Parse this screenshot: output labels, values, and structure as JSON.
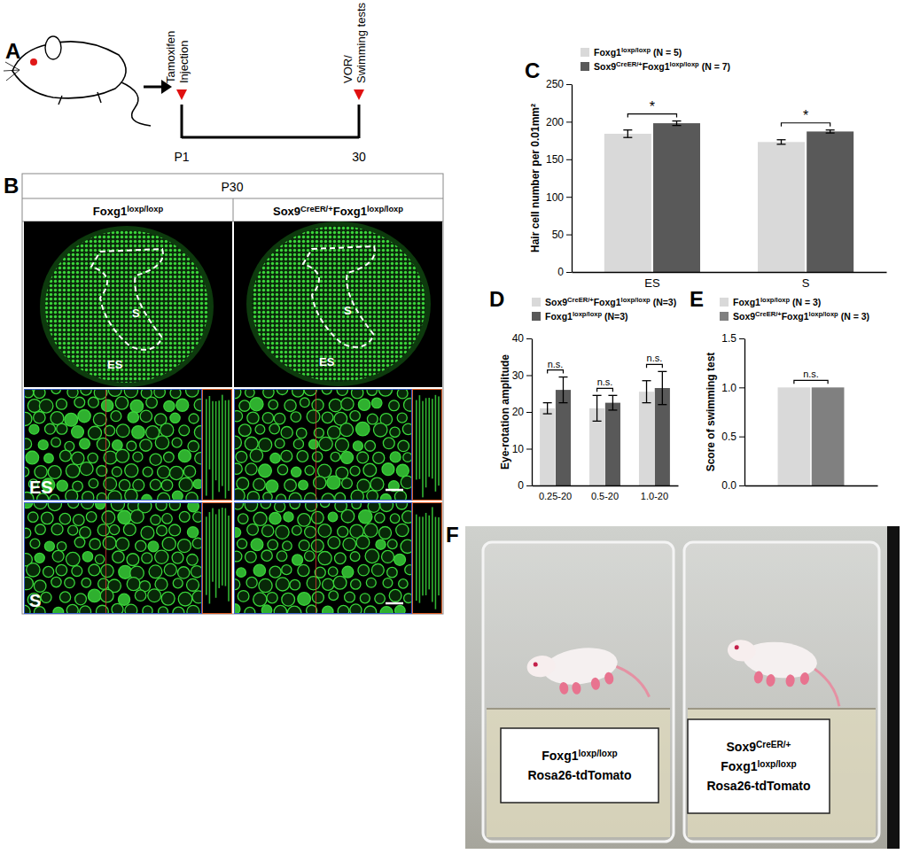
{
  "figure": {
    "A": {
      "label": "A",
      "events": [
        "Tamoxifen Injection",
        "VOR/ Swimming tests"
      ],
      "timepoints": [
        "P1",
        "30"
      ]
    },
    "B": {
      "label": "B",
      "header": "P30",
      "columns": [
        "Foxg1loxp/loxp",
        "Sox9CreER/+Foxg1loxp/loxp"
      ],
      "regions": [
        "S",
        "ES"
      ],
      "rows": [
        "ES",
        "S"
      ]
    },
    "F": {
      "label": "F",
      "boxes": [
        [
          "Foxg1loxp/loxp",
          "Rosa26-tdTomato"
        ],
        [
          "Sox9CreER/+",
          "Foxg1loxp/loxp",
          "Rosa26-tdTomato"
        ]
      ]
    }
  },
  "chart_data": [
    {
      "type": "bar",
      "panel": "C",
      "ylabel": "Hair cell number per 0.01mm²",
      "categories": [
        "ES",
        "S"
      ],
      "series": [
        {
          "name": "Foxg1loxp/loxp (N = 5)",
          "color": "#d9d9d9",
          "values": [
            184,
            173
          ],
          "errors": [
            5,
            3
          ]
        },
        {
          "name": "Sox9CreER/+Foxg1loxp/loxp (N = 7)",
          "color": "#595959",
          "values": [
            198,
            187
          ],
          "errors": [
            3,
            2
          ]
        }
      ],
      "ylim": [
        0,
        250
      ],
      "yticks": [
        0,
        50,
        100,
        150,
        200,
        250
      ],
      "annotations": [
        "*",
        "*"
      ],
      "legend": "upper left"
    },
    {
      "type": "bar",
      "panel": "D",
      "ylabel": "Eye-rotation amplitude",
      "categories": [
        "0.25-20",
        "0.5-20",
        "1.0-20"
      ],
      "series": [
        {
          "name": "Sox9CreER/+Foxg1loxp/loxp (N=3)",
          "color": "#d9d9d9",
          "values": [
            21,
            21,
            25.5
          ],
          "errors": [
            1.5,
            3.5,
            3
          ]
        },
        {
          "name": "Foxg1loxp/loxp (N=3)",
          "color": "#595959",
          "values": [
            26,
            22.5,
            26.5
          ],
          "errors": [
            3.5,
            2,
            4.5
          ]
        }
      ],
      "ylim": [
        0,
        40
      ],
      "yticks": [
        0,
        10,
        20,
        30,
        40
      ],
      "annotations": [
        "n.s.",
        "n.s.",
        "n.s."
      ],
      "legend": "upper left"
    },
    {
      "type": "bar",
      "panel": "E",
      "ylabel": "Score of swimming test",
      "categories": [
        null
      ],
      "series": [
        {
          "name": "Foxg1loxp/loxp (N = 3)",
          "color": "#d9d9d9",
          "values": [
            1
          ]
        },
        {
          "name": "Sox9CreER/+Foxg1loxp/loxp (N = 3)",
          "color": "#808080",
          "values": [
            1
          ]
        }
      ],
      "ylim": [
        0,
        1.5
      ],
      "yticks": [
        {
          "value": 0,
          "label": "0.0"
        },
        {
          "value": 0.5,
          "label": "0.5"
        },
        {
          "value": 1,
          "label": "1.0"
        },
        {
          "value": 1.5,
          "label": "1.5"
        }
      ],
      "annotations": [
        "n.s."
      ],
      "legend": "upper left",
      "tick_labels": "y"
    }
  ]
}
